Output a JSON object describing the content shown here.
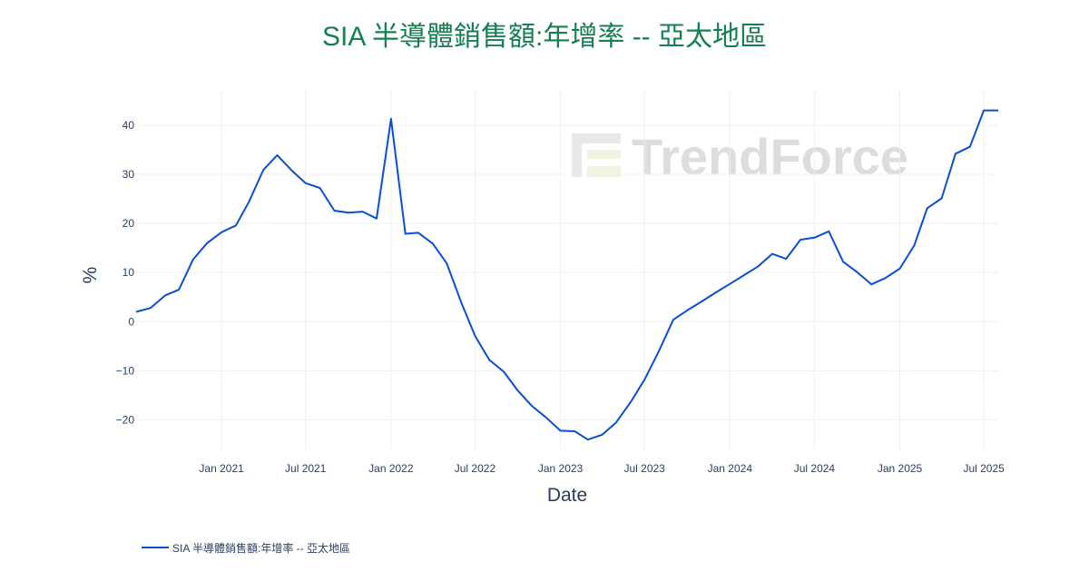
{
  "chart_data": {
    "type": "line",
    "title": "SIA 半導體銷售額:年增率 -- 亞太地區",
    "xlabel": "Date",
    "ylabel": "%",
    "xlim": [
      "2020-07-01",
      "2025-08-01"
    ],
    "ylim": [
      -26,
      47
    ],
    "x_ticks": [
      {
        "date": "2021-01-01",
        "label": "Jan 2021"
      },
      {
        "date": "2021-07-01",
        "label": "Jul 2021"
      },
      {
        "date": "2022-01-01",
        "label": "Jan 2022"
      },
      {
        "date": "2022-07-01",
        "label": "Jul 2022"
      },
      {
        "date": "2023-01-01",
        "label": "Jan 2023"
      },
      {
        "date": "2023-07-01",
        "label": "Jul 2023"
      },
      {
        "date": "2024-01-01",
        "label": "Jan 2024"
      },
      {
        "date": "2024-07-01",
        "label": "Jul 2024"
      },
      {
        "date": "2025-01-01",
        "label": "Jan 2025"
      },
      {
        "date": "2025-07-01",
        "label": "Jul 2025"
      }
    ],
    "y_ticks": [
      {
        "value": 40,
        "label": "40"
      },
      {
        "value": 30,
        "label": "30"
      },
      {
        "value": 20,
        "label": "20"
      },
      {
        "value": 10,
        "label": "10"
      },
      {
        "value": 0,
        "label": "0"
      },
      {
        "value": -10,
        "label": "−10"
      },
      {
        "value": -20,
        "label": "−20"
      }
    ],
    "grid": true,
    "legend_position": "bottom-left",
    "series": [
      {
        "name": "SIA 半導體銷售額:年增率 -- 亞太地區",
        "color": "#0a4fcf",
        "x": [
          "2020-07-01",
          "2020-08-01",
          "2020-09-01",
          "2020-10-01",
          "2020-11-01",
          "2020-12-01",
          "2021-01-01",
          "2021-02-01",
          "2021-03-01",
          "2021-04-01",
          "2021-05-01",
          "2021-06-01",
          "2021-07-01",
          "2021-08-01",
          "2021-09-01",
          "2021-10-01",
          "2021-11-01",
          "2021-12-01",
          "2022-01-01",
          "2022-02-01",
          "2022-03-01",
          "2022-04-01",
          "2022-05-01",
          "2022-06-01",
          "2022-07-01",
          "2022-08-01",
          "2022-09-01",
          "2022-10-01",
          "2022-11-01",
          "2022-12-01",
          "2023-01-01",
          "2023-02-01",
          "2023-03-01",
          "2023-04-01",
          "2023-05-01",
          "2023-06-01",
          "2023-07-01",
          "2023-08-01",
          "2023-09-01",
          "2023-10-01",
          "2023-11-01",
          "2023-12-01",
          "2024-01-01",
          "2024-02-01",
          "2024-03-01",
          "2024-04-01",
          "2024-05-01",
          "2024-06-01",
          "2024-07-01",
          "2024-08-01",
          "2024-09-01",
          "2024-10-01",
          "2024-11-01",
          "2024-12-01",
          "2025-01-01",
          "2025-02-01",
          "2025-03-01",
          "2025-04-01",
          "2025-05-01",
          "2025-06-01",
          "2025-07-01",
          "2025-08-01"
        ],
        "values": [
          2.0,
          2.8,
          5.3,
          6.5,
          12.7,
          16.0,
          18.2,
          19.6,
          24.4,
          30.9,
          33.9,
          30.8,
          28.2,
          27.2,
          22.6,
          22.2,
          22.4,
          21.0,
          41.3,
          17.9,
          18.1,
          15.9,
          11.9,
          4.0,
          -2.9,
          -7.8,
          -10.2,
          -14.0,
          -17.2,
          -19.5,
          -22.2,
          -22.3,
          -24.0,
          -23.0,
          -20.5,
          -16.4,
          -11.8,
          -6.0,
          0.4,
          2.3,
          4.1,
          5.9,
          7.7,
          9.5,
          11.2,
          13.8,
          12.8,
          16.7,
          17.1,
          18.4,
          12.2,
          10.1,
          7.6,
          8.9,
          10.8,
          15.5,
          23.1,
          25.1,
          34.2,
          35.6,
          43.0,
          43.0
        ]
      }
    ]
  },
  "watermark": {
    "text": "TrendForce"
  }
}
